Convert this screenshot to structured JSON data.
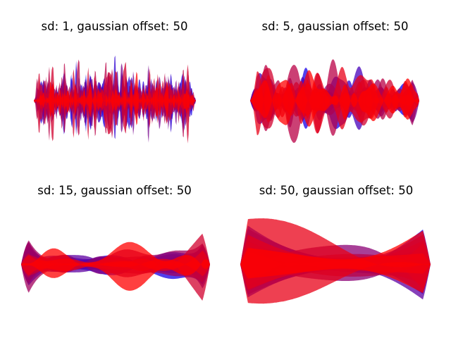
{
  "chart_data": [
    {
      "type": "area",
      "title": "sd: 1, gaussian offset: 50",
      "sd": 1,
      "gaussian_offset": 50,
      "axes_visible": false,
      "grid": false,
      "n_layers": 12,
      "n_points": 200,
      "color_start": "#0000ff",
      "color_end": "#ff0000",
      "fill_opacity": 0.75,
      "seed": 3,
      "y_range": [
        -1.3,
        1.3
      ]
    },
    {
      "type": "area",
      "title": "sd: 5, gaussian offset: 50",
      "sd": 5,
      "gaussian_offset": 50,
      "axes_visible": false,
      "grid": false,
      "n_layers": 12,
      "n_points": 200,
      "color_start": "#0000ff",
      "color_end": "#ff0000",
      "fill_opacity": 0.75,
      "seed": 11,
      "y_range": [
        -1.3,
        1.3
      ]
    },
    {
      "type": "area",
      "title": "sd: 15, gaussian offset: 50",
      "sd": 15,
      "gaussian_offset": 50,
      "axes_visible": false,
      "grid": false,
      "n_layers": 12,
      "n_points": 200,
      "color_start": "#0000ff",
      "color_end": "#ff0000",
      "fill_opacity": 0.75,
      "seed": 27,
      "y_range": [
        -1.3,
        1.3
      ]
    },
    {
      "type": "area",
      "title": "sd: 50, gaussian offset: 50",
      "sd": 50,
      "gaussian_offset": 50,
      "axes_visible": false,
      "grid": false,
      "n_layers": 12,
      "n_points": 200,
      "color_start": "#0000ff",
      "color_end": "#ff0000",
      "fill_opacity": 0.75,
      "seed": 41,
      "y_range": [
        -1.3,
        1.3
      ]
    }
  ]
}
